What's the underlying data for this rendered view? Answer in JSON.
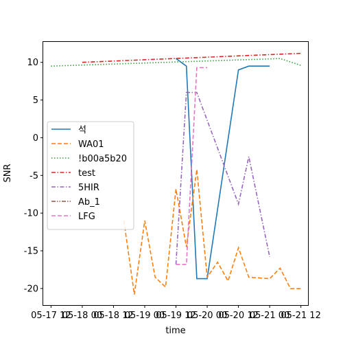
{
  "chart_data": {
    "type": "line",
    "xlabel": "time",
    "ylabel": "SNR",
    "xlim": [
      "2023-05-17 09:00",
      "2023-05-21 15:00"
    ],
    "ylim": [
      -22.2,
      12.8
    ],
    "x_ticks": [
      {
        "value": "2023-05-17 12:00",
        "label": "05-17 12"
      },
      {
        "value": "2023-05-18 00:00",
        "label": "05-18 00"
      },
      {
        "value": "2023-05-18 12:00",
        "label": "05-18 12"
      },
      {
        "value": "2023-05-19 00:00",
        "label": "05-19 00"
      },
      {
        "value": "2023-05-19 12:00",
        "label": "05-19 12"
      },
      {
        "value": "2023-05-20 00:00",
        "label": "05-20 00"
      },
      {
        "value": "2023-05-20 12:00",
        "label": "05-20 12"
      },
      {
        "value": "2023-05-21 00:00",
        "label": "05-21 00"
      },
      {
        "value": "2023-05-21 12:00",
        "label": "05-21 12"
      }
    ],
    "y_ticks": [
      10,
      5,
      0,
      -5,
      -10,
      -15,
      -20
    ],
    "grid": false,
    "legend_position": "center-left",
    "series": [
      {
        "name": "석",
        "color": "#1f77b4",
        "dash": "solid",
        "points": [
          [
            "2023-05-19 12:00",
            10.5
          ],
          [
            "2023-05-19 16:00",
            9.5
          ],
          [
            "2023-05-19 20:00",
            -18.7
          ],
          [
            "2023-05-20 00:00",
            -18.7
          ],
          [
            "2023-05-20 12:00",
            9.0
          ],
          [
            "2023-05-20 16:00",
            9.5
          ],
          [
            "2023-05-21 00:00",
            9.5
          ]
        ]
      },
      {
        "name": "WA01",
        "color": "#ff7f0e",
        "dash": "dashed",
        "points": [
          [
            "2023-05-18 16:00",
            -11.0
          ],
          [
            "2023-05-18 20:00",
            -20.8
          ],
          [
            "2023-05-19 00:00",
            -11.0
          ],
          [
            "2023-05-19 04:00",
            -18.5
          ],
          [
            "2023-05-19 08:00",
            -19.8
          ],
          [
            "2023-05-19 12:00",
            -6.8
          ],
          [
            "2023-05-19 16:00",
            -14.5
          ],
          [
            "2023-05-19 20:00",
            -4.2
          ],
          [
            "2023-05-20 00:00",
            -18.5
          ],
          [
            "2023-05-20 04:00",
            -16.5
          ],
          [
            "2023-05-20 08:00",
            -19.0
          ],
          [
            "2023-05-20 12:00",
            -14.6
          ],
          [
            "2023-05-20 16:00",
            -18.5
          ],
          [
            "2023-05-21 00:00",
            -18.7
          ],
          [
            "2023-05-21 04:00",
            -17.3
          ],
          [
            "2023-05-21 08:00",
            -20.0
          ],
          [
            "2023-05-21 12:00",
            -20.0
          ]
        ]
      },
      {
        "name": "!b00a5b20",
        "color": "#2ca02c",
        "dash": "dotted",
        "points": [
          [
            "2023-05-17 12:00",
            9.5
          ],
          [
            "2023-05-21 04:00",
            10.5
          ],
          [
            "2023-05-21 12:00",
            9.6
          ]
        ]
      },
      {
        "name": "test",
        "color": "#d62728",
        "dash": "dashdot",
        "points": [
          [
            "2023-05-18 00:00",
            10.0
          ],
          [
            "2023-05-21 12:00",
            11.2
          ]
        ]
      },
      {
        "name": "5HIR",
        "color": "#9467bd",
        "dash": "dashdot",
        "points": [
          [
            "2023-05-19 12:00",
            -16.8
          ],
          [
            "2023-05-19 16:00",
            6.0
          ],
          [
            "2023-05-19 20:00",
            6.0
          ],
          [
            "2023-05-20 12:00",
            -8.8
          ],
          [
            "2023-05-20 16:00",
            -2.5
          ],
          [
            "2023-05-21 00:00",
            -15.8
          ]
        ]
      },
      {
        "name": "Ab_1",
        "color": "#8c564b",
        "dash": "dashdotdot",
        "points": []
      },
      {
        "name": "LFG",
        "color": "#e377c2",
        "dash": "dashed",
        "points": [
          [
            "2023-05-19 12:00",
            -16.8
          ],
          [
            "2023-05-19 16:00",
            -16.8
          ],
          [
            "2023-05-19 20:00",
            9.3
          ],
          [
            "2023-05-20 00:00",
            9.3
          ]
        ]
      }
    ]
  }
}
